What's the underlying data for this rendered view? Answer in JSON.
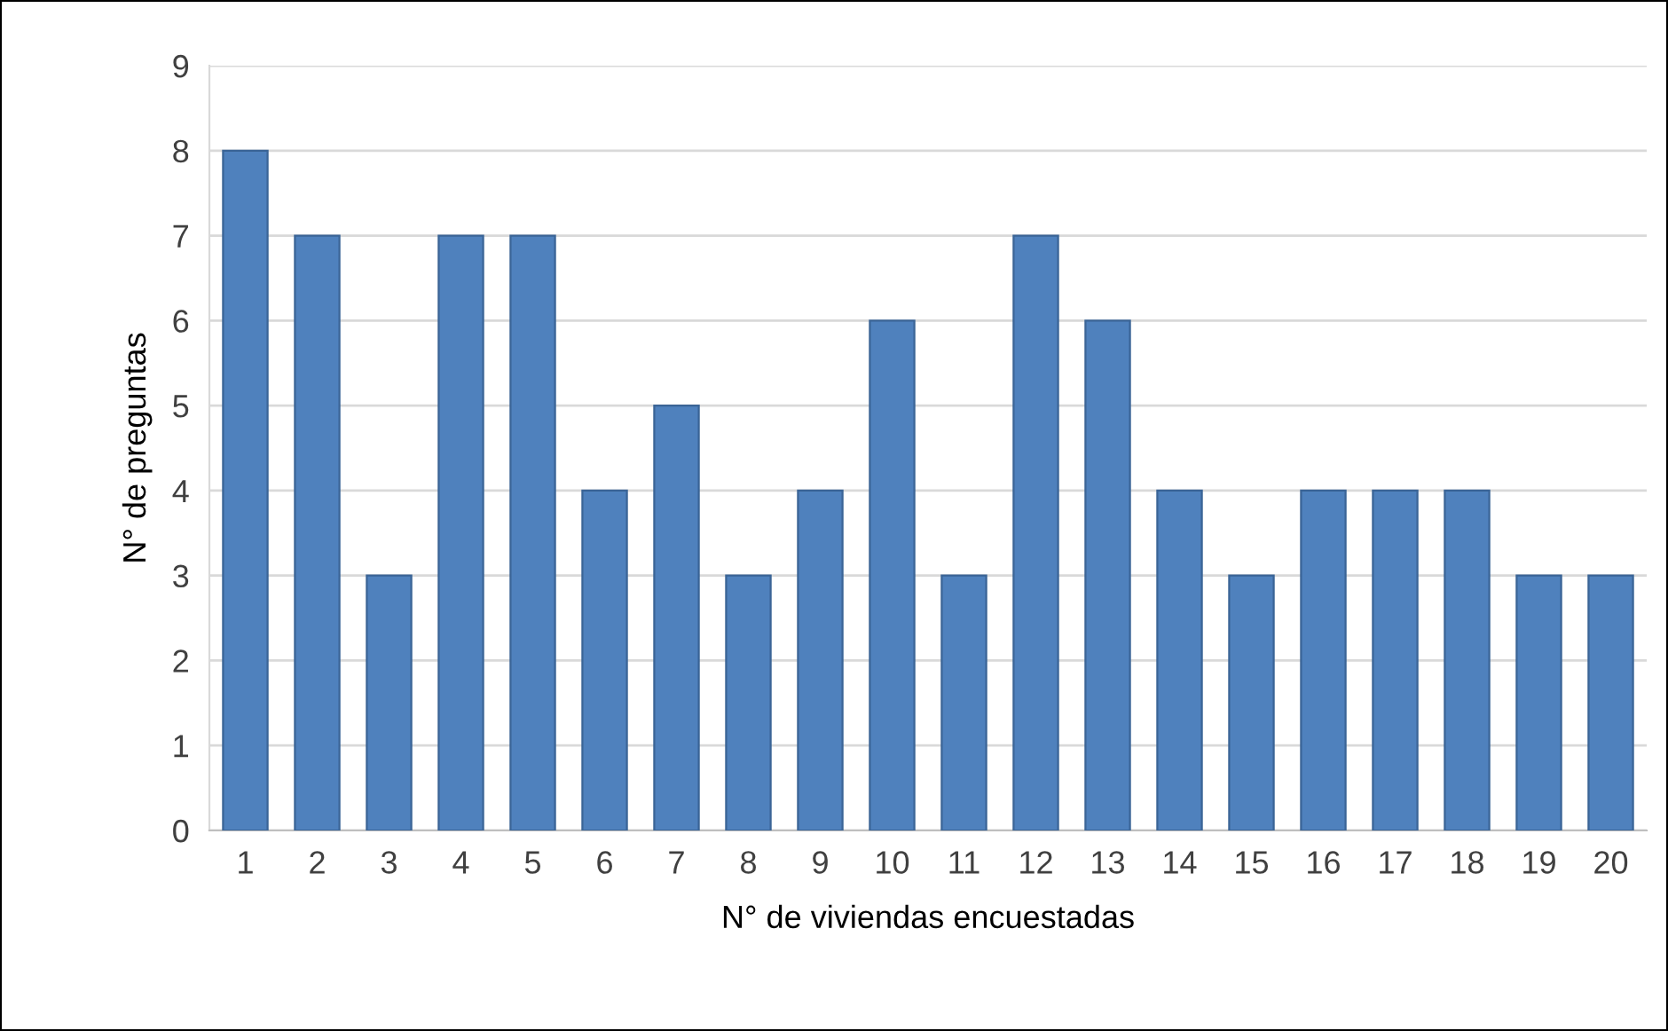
{
  "chart_data": {
    "type": "bar",
    "xlabel": "N° de viviendas encuestadas",
    "ylabel": "N° de preguntas",
    "categories": [
      "1",
      "2",
      "3",
      "4",
      "5",
      "6",
      "7",
      "8",
      "9",
      "10",
      "11",
      "12",
      "13",
      "14",
      "15",
      "16",
      "17",
      "18",
      "19",
      "20"
    ],
    "values": [
      8,
      7,
      3,
      7,
      7,
      4,
      5,
      3,
      4,
      6,
      3,
      7,
      6,
      4,
      3,
      4,
      4,
      4,
      3,
      3
    ],
    "color": "#4f81bd",
    "ylim": [
      0,
      9
    ],
    "yticks": [
      0,
      1,
      2,
      3,
      4,
      5,
      6,
      7,
      8,
      9
    ],
    "grid": "y"
  }
}
